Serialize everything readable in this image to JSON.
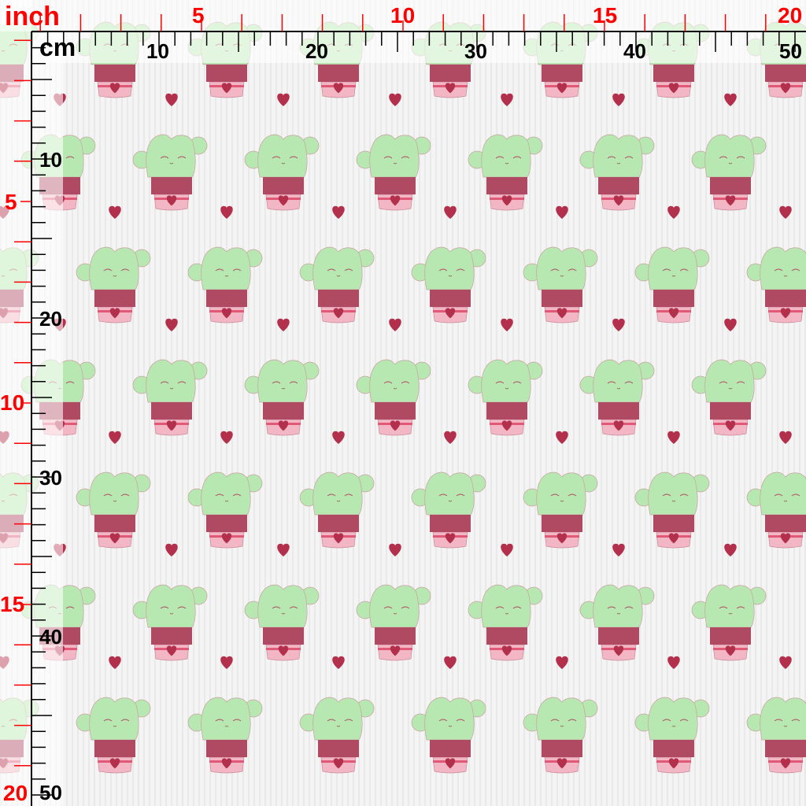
{
  "rulers": {
    "inch_unit": "inch",
    "cm_unit": "cm",
    "inch_labels": [
      "5",
      "10",
      "15",
      "20"
    ],
    "cm_labels": [
      "10",
      "20",
      "30",
      "40",
      "50"
    ],
    "inch_color": "#ff0000",
    "cm_color": "#000000"
  },
  "pattern": {
    "motif": "smiling cactus in pink pot with heart",
    "secondary_motif": "heart",
    "background": "#f4f4f4",
    "cactus_color": "#b5e8b0",
    "pot_color": "#f2b6c4",
    "pot_band_color": "#b04a62",
    "heart_color": "#b3304c"
  }
}
